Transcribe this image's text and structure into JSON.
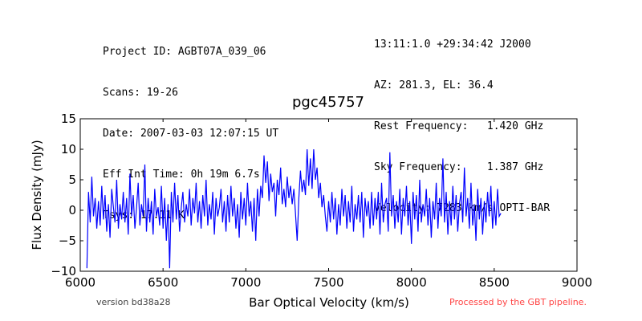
{
  "header": {
    "left_lines": [
      "Project ID: AGBT07A_039_06",
      "Scans: 19-26",
      "Date: 2007-03-03 12:07:15 UT",
      "Eff Int Time: 0h 19m 6.7s",
      "Tsys: 17.11 K"
    ],
    "right_lines": [
      "13:11:1.0 +29:34:42 J2000",
      "AZ: 281.3, EL: 36.4",
      "Rest Frequency:   1.420 GHz",
      "Sky Frequency:    1.387 GHz",
      "Velocity: 7283 km/s OPTI-BAR"
    ]
  },
  "footer": {
    "version": "version bd38a28",
    "processed": "Processed by the GBT pipeline."
  },
  "colors": {
    "line": "#0000ff",
    "axes": "#000000",
    "processed_text": "#ff4444"
  },
  "chart_data": {
    "type": "line",
    "title": "pgc45757",
    "xlabel": "Bar Optical Velocity (km/s)",
    "ylabel": "Flux Density (mJy)",
    "xlim": [
      6000,
      9000
    ],
    "ylim": [
      -10,
      15
    ],
    "xticks": [
      6000,
      6500,
      7000,
      7500,
      8000,
      8500,
      9000
    ],
    "yticks": [
      -10,
      -5,
      0,
      5,
      10,
      15
    ],
    "grid": false,
    "series": [
      {
        "x": [
          6040,
          6050,
          6060,
          6070,
          6080,
          6090,
          6100,
          6110,
          6120,
          6130,
          6140,
          6150,
          6160,
          6170,
          6180,
          6190,
          6200,
          6210,
          6220,
          6230,
          6240,
          6250,
          6260,
          6270,
          6280,
          6290,
          6300,
          6310,
          6320,
          6330,
          6340,
          6350,
          6360,
          6370,
          6380,
          6390,
          6400,
          6410,
          6420,
          6430,
          6440,
          6450,
          6460,
          6470,
          6480,
          6490,
          6500,
          6510,
          6520,
          6530,
          6540,
          6550,
          6560,
          6570,
          6580,
          6590,
          6600,
          6610,
          6620,
          6630,
          6640,
          6650,
          6660,
          6670,
          6680,
          6690,
          6700,
          6710,
          6720,
          6730,
          6740,
          6750,
          6760,
          6770,
          6780,
          6790,
          6800,
          6810,
          6820,
          6830,
          6840,
          6850,
          6860,
          6870,
          6880,
          6890,
          6900,
          6910,
          6920,
          6930,
          6940,
          6950,
          6960,
          6970,
          6980,
          6990,
          7000,
          7010,
          7020,
          7030,
          7040,
          7050,
          7060,
          7070,
          7080,
          7090,
          7100,
          7110,
          7120,
          7130,
          7140,
          7150,
          7160,
          7170,
          7180,
          7190,
          7200,
          7210,
          7220,
          7230,
          7240,
          7250,
          7260,
          7270,
          7280,
          7290,
          7300,
          7310,
          7320,
          7330,
          7340,
          7350,
          7360,
          7370,
          7380,
          7390,
          7400,
          7410,
          7420,
          7430,
          7440,
          7450,
          7460,
          7470,
          7480,
          7490,
          7500,
          7510,
          7520,
          7530,
          7540,
          7550,
          7560,
          7570,
          7580,
          7590,
          7600,
          7610,
          7620,
          7630,
          7640,
          7650,
          7660,
          7670,
          7680,
          7690,
          7700,
          7710,
          7720,
          7730,
          7740,
          7750,
          7760,
          7770,
          7780,
          7790,
          7800,
          7810,
          7820,
          7830,
          7840,
          7850,
          7860,
          7870,
          7880,
          7890,
          7900,
          7910,
          7920,
          7930,
          7940,
          7950,
          7960,
          7970,
          7980,
          7990,
          8000,
          8010,
          8020,
          8030,
          8040,
          8050,
          8060,
          8070,
          8080,
          8090,
          8100,
          8110,
          8120,
          8130,
          8140,
          8150,
          8160,
          8170,
          8180,
          8190,
          8200,
          8210,
          8220,
          8230,
          8240,
          8250,
          8260,
          8270,
          8280,
          8290,
          8300,
          8310,
          8320,
          8330,
          8340,
          8350,
          8360,
          8370,
          8380,
          8390,
          8400,
          8410,
          8420,
          8430,
          8440,
          8450,
          8460,
          8470,
          8480,
          8490,
          8500,
          8510,
          8520,
          8530,
          8540
        ],
        "y": [
          -9.5,
          3.0,
          -2.0,
          5.5,
          -1.0,
          2.0,
          -3.0,
          1.5,
          -2.5,
          4.0,
          -1.5,
          2.5,
          -3.5,
          1.0,
          -4.5,
          3.5,
          0.5,
          -2.0,
          5.0,
          -3.0,
          1.0,
          -1.5,
          3.0,
          -2.0,
          2.0,
          -4.0,
          6.0,
          -1.0,
          2.5,
          -3.0,
          0.5,
          4.5,
          -2.5,
          1.0,
          -1.0,
          7.5,
          -3.5,
          2.0,
          -2.0,
          1.5,
          -4.0,
          3.5,
          -1.0,
          0.5,
          -2.5,
          4.0,
          -3.0,
          2.0,
          -5.0,
          1.0,
          -9.5,
          3.0,
          -2.0,
          4.5,
          -1.5,
          2.5,
          -3.5,
          0.5,
          3.0,
          -2.0,
          1.0,
          -1.0,
          3.5,
          -2.5,
          2.0,
          -0.5,
          4.5,
          -2.0,
          1.5,
          -3.0,
          2.5,
          -1.0,
          5.0,
          -2.5,
          1.0,
          -1.5,
          3.0,
          -4.0,
          2.0,
          -1.0,
          0.5,
          3.5,
          -2.0,
          1.5,
          -3.5,
          2.5,
          -2.0,
          4.0,
          -1.0,
          2.0,
          -3.0,
          1.0,
          -4.5,
          3.0,
          -1.5,
          2.0,
          -2.5,
          4.5,
          -1.0,
          1.5,
          -3.5,
          2.0,
          -5.0,
          3.5,
          -1.0,
          4.0,
          2.0,
          9.0,
          4.5,
          8.0,
          1.5,
          6.0,
          3.0,
          4.5,
          -1.0,
          5.0,
          2.5,
          7.0,
          1.0,
          3.5,
          0.5,
          5.5,
          2.0,
          4.0,
          1.0,
          3.5,
          -0.5,
          -5.0,
          2.0,
          6.5,
          3.0,
          5.0,
          2.5,
          10.0,
          4.0,
          8.5,
          3.5,
          10.0,
          5.0,
          7.0,
          2.0,
          4.5,
          0.5,
          2.5,
          -1.0,
          -3.5,
          1.5,
          -2.0,
          3.0,
          -1.5,
          2.0,
          -4.0,
          1.0,
          -2.5,
          3.5,
          -1.0,
          2.5,
          -3.0,
          1.5,
          -2.0,
          4.0,
          -3.5,
          1.0,
          -1.5,
          2.5,
          -2.0,
          3.0,
          -4.5,
          2.0,
          -1.0,
          1.5,
          -3.0,
          3.0,
          -2.5,
          2.0,
          -1.5,
          3.0,
          -4.0,
          4.5,
          -2.0,
          1.0,
          2.0,
          -3.5,
          9.5,
          -1.0,
          2.5,
          -3.0,
          1.5,
          -2.0,
          3.5,
          -4.0,
          2.0,
          -1.0,
          4.0,
          -2.5,
          1.5,
          -5.5,
          3.0,
          -1.5,
          2.5,
          -3.5,
          5.0,
          -2.0,
          1.0,
          -1.0,
          3.5,
          -2.5,
          2.0,
          -4.5,
          1.5,
          -1.5,
          4.5,
          -3.0,
          2.0,
          -1.0,
          8.5,
          -2.0,
          3.0,
          -4.0,
          1.5,
          -2.5,
          4.0,
          -1.5,
          2.5,
          -3.5,
          1.0,
          3.0,
          -2.0,
          7.0,
          -1.0,
          2.0,
          -3.0,
          4.5,
          -2.5,
          1.0,
          -5.0,
          3.5,
          -1.5,
          2.0,
          -4.0,
          1.5,
          -2.0,
          3.0,
          -1.0,
          4.0,
          -3.0,
          1.5,
          -2.5,
          3.5,
          -1.0,
          -0.5
        ]
      }
    ]
  }
}
